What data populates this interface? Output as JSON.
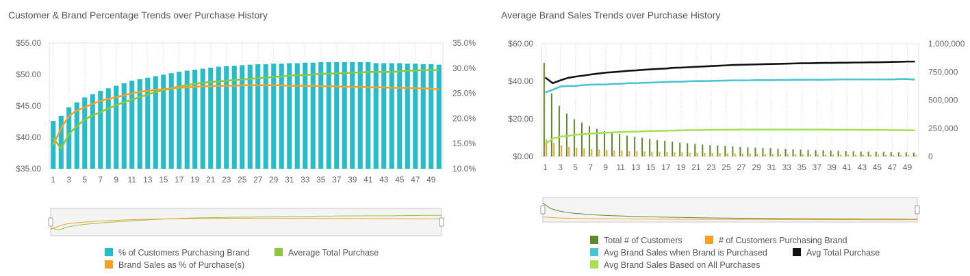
{
  "colors": {
    "teal": "#28bcc8",
    "orange": "#f5a02a",
    "green_light": "#8dc63f",
    "green_dark": "#5e8a2c",
    "cyan": "#4bc3d3",
    "black": "#111111",
    "lime": "#a8e053"
  },
  "chart_data": [
    {
      "type": "bar",
      "title": "Customer & Brand Percentage Trends over Purchase History",
      "x": [
        1,
        2,
        3,
        4,
        5,
        6,
        7,
        8,
        9,
        10,
        11,
        12,
        13,
        14,
        15,
        16,
        17,
        18,
        19,
        20,
        21,
        22,
        23,
        24,
        25,
        26,
        27,
        28,
        29,
        30,
        31,
        32,
        33,
        34,
        35,
        36,
        37,
        38,
        39,
        40,
        41,
        42,
        43,
        44,
        45,
        46,
        47,
        48,
        49,
        50
      ],
      "x_tick_labels": [
        "1",
        "3",
        "5",
        "7",
        "9",
        "11",
        "13",
        "15",
        "17",
        "19",
        "21",
        "23",
        "25",
        "27",
        "29",
        "31",
        "33",
        "35",
        "37",
        "39",
        "41",
        "43",
        "45",
        "47",
        "49"
      ],
      "y_left_tick_labels": [
        "$55.00",
        "$50.00",
        "$45.00",
        "$40.00",
        "$35.00"
      ],
      "y_right_tick_labels": [
        "35.0%",
        "30.0%",
        "25.0%",
        "20.0%",
        "15.0%",
        "10.0%"
      ],
      "ylim_left": [
        35,
        55
      ],
      "ylim_right": [
        10,
        35
      ],
      "series": [
        {
          "name": "% of Customers Purchasing Brand",
          "type": "bar",
          "axis": "right",
          "color": "#28bcc8",
          "values": [
            19.5,
            20.5,
            22.2,
            23.2,
            24.2,
            24.8,
            25.5,
            26.0,
            26.5,
            27.0,
            27.5,
            27.8,
            28.1,
            28.4,
            28.7,
            29.0,
            29.3,
            29.5,
            29.7,
            29.9,
            30.1,
            30.3,
            30.4,
            30.5,
            30.6,
            30.7,
            30.8,
            30.8,
            30.9,
            30.9,
            31.0,
            31.0,
            31.1,
            31.1,
            31.2,
            31.2,
            31.2,
            31.2,
            31.2,
            31.2,
            31.2,
            31.0,
            31.0,
            31.0,
            31.0,
            30.9,
            30.9,
            30.8,
            30.8,
            30.7
          ]
        },
        {
          "name": "Average Total Purchase",
          "type": "line",
          "axis": "left",
          "color": "#8dc63f",
          "values": [
            39.9,
            38.2,
            40.5,
            41.8,
            42.8,
            43.5,
            44.0,
            44.6,
            45.1,
            45.6,
            46.0,
            46.4,
            46.8,
            47.2,
            47.5,
            47.8,
            48.1,
            48.3,
            48.5,
            48.7,
            48.8,
            48.9,
            49.0,
            49.1,
            49.2,
            49.3,
            49.4,
            49.5,
            49.6,
            49.7,
            49.8,
            49.9,
            49.9,
            50.0,
            50.1,
            50.1,
            50.2,
            50.2,
            50.3,
            50.3,
            50.4,
            50.4,
            50.4,
            50.4,
            50.5,
            50.6,
            50.6,
            50.7,
            50.7,
            50.7
          ]
        },
        {
          "name": "Brand Sales as % of Purchase(s)",
          "type": "line",
          "axis": "right",
          "color": "#f5a02a",
          "values": [
            14.8,
            18.0,
            20.5,
            21.6,
            22.2,
            22.9,
            23.5,
            23.9,
            24.2,
            24.6,
            25.0,
            25.3,
            25.5,
            25.7,
            25.8,
            26.0,
            26.1,
            26.2,
            26.3,
            26.4,
            26.4,
            26.5,
            26.5,
            26.5,
            26.6,
            26.6,
            26.6,
            26.6,
            26.6,
            26.6,
            26.5,
            26.5,
            26.5,
            26.5,
            26.4,
            26.4,
            26.4,
            26.3,
            26.3,
            26.3,
            26.2,
            26.2,
            26.2,
            26.1,
            26.1,
            26.1,
            26.0,
            26.0,
            25.9,
            25.8
          ]
        }
      ],
      "legend": [
        {
          "label": "% of Customers Purchasing Brand",
          "color": "#28bcc8"
        },
        {
          "label": "Average Total Purchase",
          "color": "#8dc63f"
        },
        {
          "label": "Brand Sales as % of Purchase(s)",
          "color": "#f5a02a"
        }
      ]
    },
    {
      "type": "bar",
      "title": "Average Brand Sales Trends over Purchase History",
      "x": [
        1,
        2,
        3,
        4,
        5,
        6,
        7,
        8,
        9,
        10,
        11,
        12,
        13,
        14,
        15,
        16,
        17,
        18,
        19,
        20,
        21,
        22,
        23,
        24,
        25,
        26,
        27,
        28,
        29,
        30,
        31,
        32,
        33,
        34,
        35,
        36,
        37,
        38,
        39,
        40,
        41,
        42,
        43,
        44,
        45,
        46,
        47,
        48,
        49,
        50
      ],
      "x_tick_labels": [
        "1",
        "3",
        "5",
        "7",
        "9",
        "11",
        "13",
        "15",
        "17",
        "19",
        "21",
        "23",
        "25",
        "27",
        "29",
        "31",
        "33",
        "35",
        "37",
        "39",
        "41",
        "43",
        "45",
        "47",
        "49"
      ],
      "y_left_tick_labels": [
        "$60.00",
        "$40.00",
        "$20.00",
        "$0.00"
      ],
      "y_right_tick_labels": [
        "1,000,000",
        "750,000",
        "500,000",
        "250,000",
        "0"
      ],
      "ylim_left": [
        0,
        60
      ],
      "ylim_right": [
        0,
        1000000
      ],
      "series": [
        {
          "name": "Total # of Customers",
          "type": "bar",
          "axis": "right",
          "color": "#5e8a2c",
          "values": [
            830000,
            560000,
            450000,
            380000,
            330000,
            300000,
            270000,
            245000,
            225000,
            210000,
            200000,
            185000,
            175000,
            165000,
            155000,
            145000,
            138000,
            130000,
            123000,
            117000,
            111000,
            106000,
            101000,
            97000,
            93000,
            89000,
            85000,
            81000,
            78000,
            75000,
            72000,
            69000,
            66000,
            63000,
            61000,
            58000,
            56000,
            54000,
            52000,
            50000,
            48000,
            46000,
            44000,
            43000,
            41000,
            40000,
            38000,
            37000,
            35000,
            34000
          ]
        },
        {
          "name": "# of Customers Purchasing Brand",
          "type": "bar",
          "axis": "right",
          "color": "#f5a02a",
          "values": [
            150000,
            120000,
            100000,
            87000,
            78000,
            72000,
            66000,
            61000,
            57000,
            54000,
            51000,
            48000,
            46000,
            44000,
            42000,
            40000,
            38000,
            36000,
            35000,
            33000,
            32000,
            31000,
            30000,
            29000,
            28000,
            27000,
            26000,
            25000,
            24000,
            23000,
            22500,
            21500,
            20500,
            19500,
            19000,
            18000,
            17500,
            17000,
            16500,
            16000,
            15500,
            15000,
            14500,
            14000,
            13500,
            13000,
            12500,
            12000,
            11800,
            11500
          ]
        },
        {
          "name": "Avg Brand Sales when Brand is Purchased",
          "type": "line",
          "axis": "left",
          "color": "#4bc3d3",
          "values": [
            34.0,
            35.5,
            37.2,
            37.5,
            37.5,
            38.0,
            38.2,
            38.3,
            38.3,
            38.6,
            38.7,
            39.0,
            39.0,
            39.2,
            39.3,
            39.5,
            39.6,
            39.8,
            39.8,
            40.0,
            40.1,
            40.1,
            40.2,
            40.3,
            40.4,
            40.5,
            40.5,
            40.5,
            40.6,
            40.6,
            40.6,
            40.7,
            40.7,
            40.8,
            40.8,
            40.8,
            40.8,
            40.8,
            40.9,
            41.0,
            41.0,
            41.0,
            41.0,
            41.0,
            41.0,
            41.0,
            41.0,
            41.2,
            41.2,
            40.9
          ]
        },
        {
          "name": "Avg Total Purchase",
          "type": "line",
          "axis": "left",
          "color": "#111111",
          "values": [
            42.0,
            39.0,
            40.5,
            41.8,
            42.5,
            43.0,
            43.6,
            44.1,
            44.6,
            44.9,
            45.2,
            45.6,
            45.8,
            46.1,
            46.4,
            46.6,
            46.8,
            47.2,
            47.3,
            47.5,
            47.7,
            47.9,
            48.1,
            48.3,
            48.5,
            48.7,
            48.8,
            48.9,
            49.0,
            49.1,
            49.2,
            49.3,
            49.4,
            49.5,
            49.6,
            49.6,
            49.7,
            49.8,
            49.8,
            49.9,
            49.9,
            50.0,
            50.0,
            50.1,
            50.1,
            50.2,
            50.3,
            50.4,
            50.5,
            50.5
          ]
        },
        {
          "name": "Avg Brand Sales Based on All Purchases",
          "type": "line",
          "axis": "left",
          "color": "#a8e053",
          "values": [
            6.5,
            9.5,
            10.5,
            11.0,
            11.5,
            11.8,
            12.2,
            12.4,
            12.6,
            12.8,
            13.0,
            13.1,
            13.2,
            13.4,
            13.5,
            13.6,
            13.7,
            13.8,
            13.9,
            14.0,
            14.0,
            14.1,
            14.1,
            14.2,
            14.2,
            14.2,
            14.3,
            14.3,
            14.3,
            14.3,
            14.3,
            14.3,
            14.3,
            14.3,
            14.3,
            14.3,
            14.3,
            14.3,
            14.2,
            14.2,
            14.2,
            14.2,
            14.1,
            14.1,
            14.1,
            14.1,
            14.0,
            14.0,
            14.0,
            13.9
          ]
        }
      ],
      "legend": [
        {
          "label": "Total # of Customers",
          "color": "#5e8a2c"
        },
        {
          "label": "# of Customers Purchasing Brand",
          "color": "#f5a02a"
        },
        {
          "label": "Avg Brand Sales when Brand is Purchased",
          "color": "#4bc3d3"
        },
        {
          "label": "Avg Total Purchase",
          "color": "#111111"
        },
        {
          "label": "Avg Brand Sales Based on All Purchases",
          "color": "#a8e053"
        }
      ]
    }
  ]
}
